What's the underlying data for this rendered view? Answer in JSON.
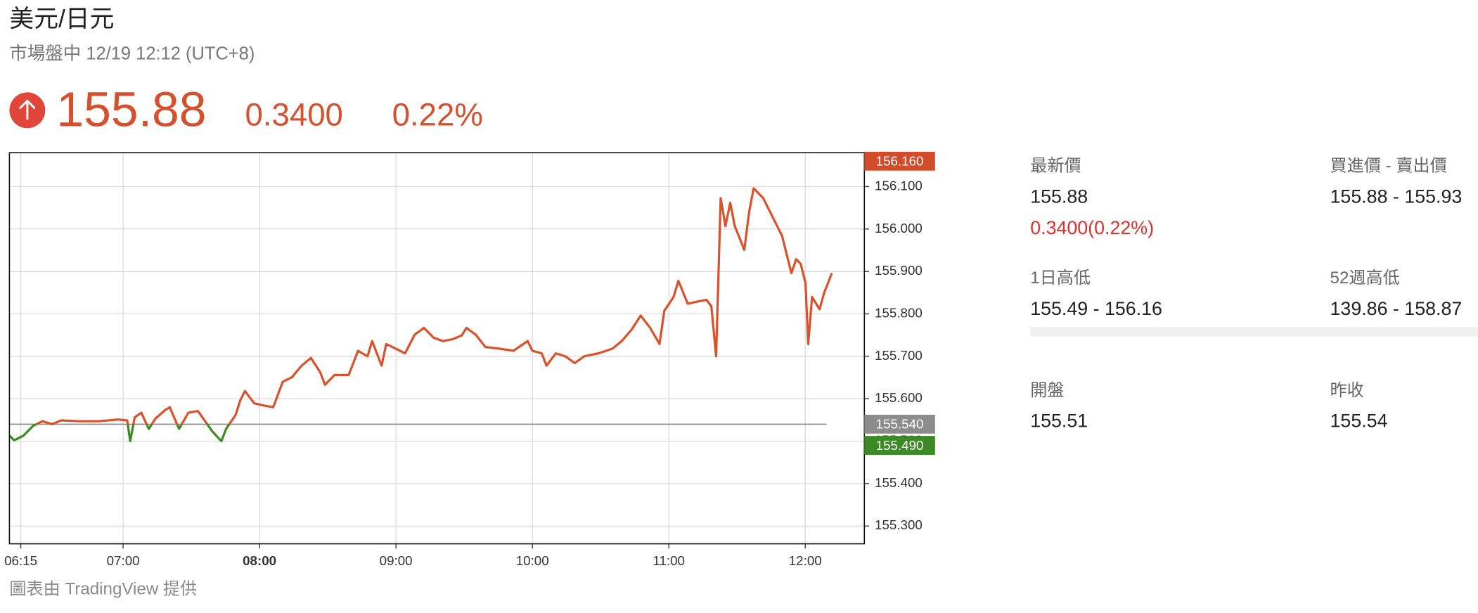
{
  "header": {
    "title": "美元/日元",
    "status": "市場盤中 12/19 12:12 (UTC+8)",
    "price": "155.88",
    "change": "0.3400",
    "change_pct": "0.22%"
  },
  "chart_data": {
    "type": "line",
    "color": "#d9522b",
    "down_color": "#3b8a23",
    "x": [
      370.0,
      372.1,
      376.2,
      380.4,
      384.5,
      388.7,
      392.8,
      401.1,
      409.4,
      417.7,
      421.8,
      423.1,
      425.1,
      428.0,
      431.3,
      434.2,
      438.4,
      440.5,
      444.6,
      448.7,
      452.9,
      457.0,
      459.1,
      463.2,
      465.3,
      469.5,
      471.5,
      473.6,
      477.7,
      481.9,
      486.0,
      490.2,
      494.3,
      498.5,
      502.6,
      506.7,
      508.8,
      513.0,
      519.2,
      523.3,
      527.5,
      529.5,
      533.7,
      535.7,
      539.9,
      544.0,
      548.2,
      552.3,
      556.5,
      560.6,
      564.7,
      568.9,
      571.0,
      575.1,
      579.3,
      585.5,
      591.7,
      597.9,
      600.0,
      604.1,
      606.2,
      610.3,
      614.5,
      618.6,
      622.8,
      629.0,
      635.2,
      639.3,
      643.5,
      647.6,
      651.8,
      655.9,
      658.0,
      662.1,
      664.2,
      668.3,
      672.5,
      676.6,
      678.7,
      680.8,
      682.8,
      684.9,
      687.0,
      689.0,
      693.2,
      695.3,
      697.3,
      701.5,
      705.6,
      709.8,
      713.9,
      716.0,
      718.0,
      720.1,
      721.3,
      723.0,
      726.3,
      728.4,
      731.7
    ],
    "values": [
      155.513,
      155.502,
      155.513,
      155.536,
      155.547,
      155.54,
      155.549,
      155.547,
      155.547,
      155.551,
      155.549,
      155.5,
      155.556,
      155.567,
      155.529,
      155.553,
      155.573,
      155.58,
      155.529,
      155.567,
      155.571,
      155.54,
      155.524,
      155.5,
      155.529,
      155.562,
      155.596,
      155.618,
      155.589,
      155.584,
      155.58,
      155.64,
      155.651,
      155.678,
      155.696,
      155.662,
      155.633,
      155.656,
      155.656,
      155.713,
      155.7,
      155.736,
      155.678,
      155.729,
      155.718,
      155.707,
      155.751,
      155.767,
      155.744,
      155.736,
      155.74,
      155.749,
      155.767,
      155.751,
      155.722,
      155.718,
      155.713,
      155.736,
      155.713,
      155.707,
      155.678,
      155.707,
      155.7,
      155.684,
      155.7,
      155.707,
      155.718,
      155.736,
      155.762,
      155.796,
      155.767,
      155.729,
      155.807,
      155.84,
      155.878,
      155.824,
      155.829,
      155.833,
      155.818,
      155.7,
      156.073,
      156.007,
      156.062,
      156.007,
      155.951,
      156.04,
      156.096,
      156.073,
      156.029,
      155.984,
      155.896,
      155.929,
      155.918,
      155.873,
      155.729,
      155.84,
      155.811,
      155.851,
      155.896
    ],
    "xlim": [
      370,
      746
    ],
    "xticks": [
      {
        "value": 375,
        "label": "06:15"
      },
      {
        "value": 420,
        "label": "07:00"
      },
      {
        "value": 480,
        "label": "08:00"
      },
      {
        "value": 540,
        "label": "09:00"
      },
      {
        "value": 600,
        "label": "10:00"
      },
      {
        "value": 660,
        "label": "11:00"
      },
      {
        "value": 720,
        "label": "12:00"
      }
    ],
    "ylim": [
      155.258,
      156.18
    ],
    "yticks": [
      {
        "value": 155.3,
        "label": "155.300"
      },
      {
        "value": 155.4,
        "label": "155.400"
      },
      {
        "value": 155.5,
        "label": "155.500"
      },
      {
        "value": 155.6,
        "label": "155.600"
      },
      {
        "value": 155.7,
        "label": "155.700"
      },
      {
        "value": 155.8,
        "label": "155.800"
      },
      {
        "value": 155.9,
        "label": "155.900"
      },
      {
        "value": 156.0,
        "label": "156.000"
      },
      {
        "value": 156.1,
        "label": "156.100"
      }
    ],
    "grid": true,
    "high": {
      "value": 156.16,
      "label": "156.160",
      "color": "#d24b2a"
    },
    "baseline": {
      "value": 155.54,
      "label": "155.540",
      "color": "#8c8c8c"
    },
    "low": {
      "value": 155.49,
      "label": "155.490",
      "color": "#3b8a23"
    }
  },
  "stats": [
    {
      "label": "最新價",
      "value": "155.88",
      "extra": "0.3400(0.22%)"
    },
    {
      "label": "買進價 - 賣出價",
      "value": "155.88 - 155.93"
    },
    {
      "label": "1日高低",
      "value": "155.49 - 156.16"
    },
    {
      "label": "52週高低",
      "value": "139.86 - 158.87"
    },
    {
      "label": "開盤",
      "value": "155.51"
    },
    {
      "label": "昨收",
      "value": "155.54"
    }
  ],
  "source": "圖表由 TradingView 提供"
}
